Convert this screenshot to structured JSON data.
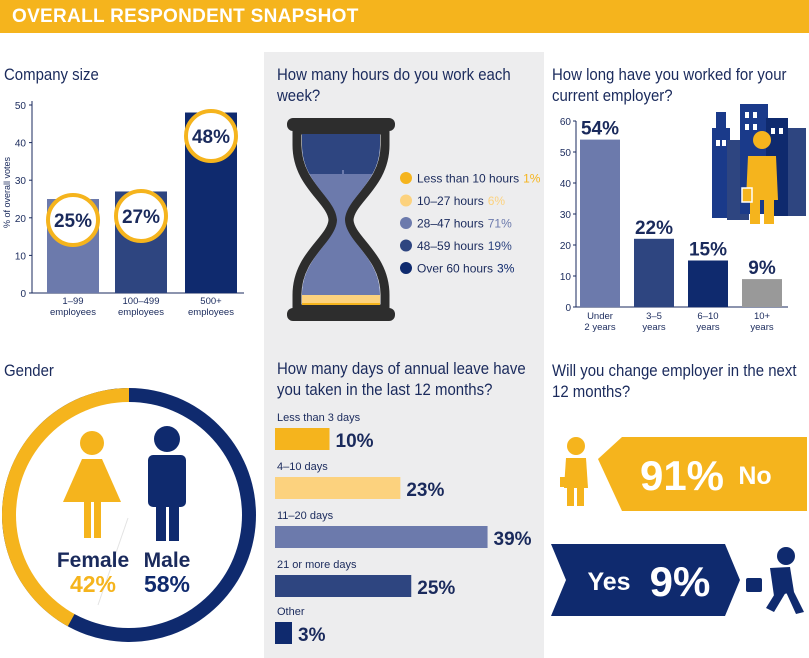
{
  "header": {
    "title": "OVERALL RESPONDENT SNAPSHOT"
  },
  "colors": {
    "gold": "#f5b41d",
    "light_gold": "#fcd27e",
    "periwinkle": "#6c7aac",
    "mid_navy": "#2e4580",
    "navy": "#0f2a6e",
    "grey": "#999999",
    "panel": "#ededee"
  },
  "chart_data": [
    {
      "id": "company_size",
      "type": "bar",
      "title": "Company size",
      "ylabel": "% of overall votes",
      "ylim": [
        0,
        50
      ],
      "yticks": [
        0,
        10,
        20,
        30,
        40,
        50
      ],
      "categories": [
        "1–99 employees",
        "100–499 employees",
        "500+ employees"
      ],
      "category_lines": [
        [
          "1–99",
          "employees"
        ],
        [
          "100–499",
          "employees"
        ],
        [
          "500+",
          "employees"
        ]
      ],
      "values": [
        25,
        27,
        48
      ],
      "value_labels": [
        "25%",
        "27%",
        "48%"
      ],
      "colors": [
        "#6c7aac",
        "#2e4580",
        "#0f2a6e"
      ]
    },
    {
      "id": "hours_per_week",
      "type": "pie",
      "title": "How many hours do you work each week?",
      "categories": [
        "Less than 10 hours",
        "10–27 hours",
        "28–47 hours",
        "48–59 hours",
        "Over 60 hours"
      ],
      "values": [
        1,
        6,
        71,
        19,
        3
      ],
      "value_labels": [
        "1%",
        "6%",
        "71%",
        "19%",
        "3%"
      ],
      "colors": [
        "#f5b41d",
        "#fcd27e",
        "#6c7aac",
        "#2e4580",
        "#0f2a6e"
      ],
      "value_colors": [
        "#f5b41d",
        "#fcd27e",
        "#6c7aac",
        "#2e4580",
        "#0f2a6e"
      ]
    },
    {
      "id": "tenure",
      "type": "bar",
      "title": "How long have you worked for your current employer?",
      "ylim": [
        0,
        60
      ],
      "yticks": [
        0,
        10,
        20,
        30,
        40,
        50,
        60
      ],
      "categories": [
        "Under 2 years",
        "3–5 years",
        "6–10 years",
        "10+ years"
      ],
      "category_lines": [
        [
          "Under",
          "2 years"
        ],
        [
          "3–5",
          "years"
        ],
        [
          "6–10",
          "years"
        ],
        [
          "10+",
          "years"
        ]
      ],
      "values": [
        54,
        22,
        15,
        9
      ],
      "value_labels": [
        "54%",
        "22%",
        "15%",
        "9%"
      ],
      "colors": [
        "#6c7aac",
        "#2e4580",
        "#0f2a6e",
        "#999999"
      ]
    },
    {
      "id": "gender",
      "type": "pie",
      "title": "Gender",
      "categories": [
        "Female",
        "Male"
      ],
      "values": [
        42,
        58
      ],
      "value_labels": [
        "42%",
        "58%"
      ],
      "colors": [
        "#f5b41d",
        "#0f2a6e"
      ]
    },
    {
      "id": "annual_leave",
      "type": "bar",
      "orientation": "horizontal",
      "title": "How many days of annual leave have you taken in the last 12 months?",
      "categories": [
        "Less than 3 days",
        "4–10 days",
        "11–20 days",
        "21 or more days",
        "Other"
      ],
      "values": [
        10,
        23,
        39,
        25,
        3
      ],
      "value_labels": [
        "10%",
        "23%",
        "39%",
        "25%",
        "3%"
      ],
      "colors": [
        "#f5b41d",
        "#fcd27e",
        "#6c7aac",
        "#2e4580",
        "#0f2a6e"
      ]
    },
    {
      "id": "change_employer",
      "type": "bar",
      "title": "Will you change employer in the next 12 months?",
      "categories": [
        "No",
        "Yes"
      ],
      "values": [
        91,
        9
      ],
      "value_labels": [
        "91%",
        "9%"
      ],
      "colors": [
        "#f5b41d",
        "#0f2a6e"
      ]
    }
  ]
}
